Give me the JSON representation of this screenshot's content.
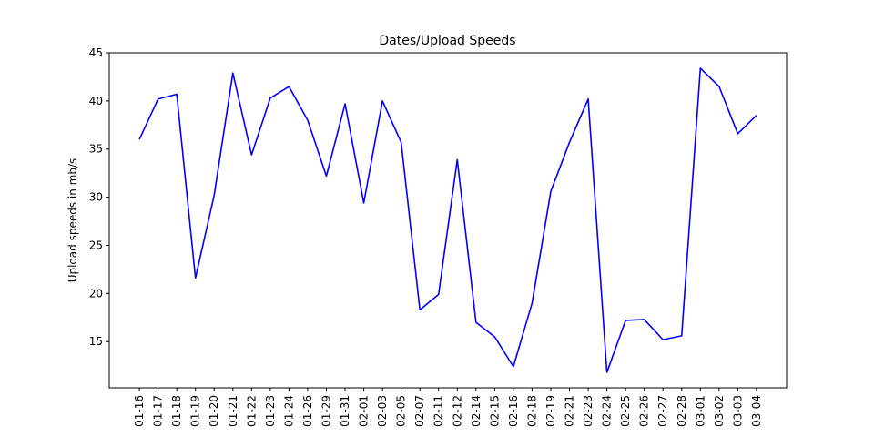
{
  "chart_data": {
    "type": "line",
    "title": "Dates/Upload Speeds",
    "xlabel": "",
    "ylabel": "Upload speeds in mb/s",
    "ylim": [
      10.2,
      45
    ],
    "yticks": [
      15,
      20,
      25,
      30,
      35,
      40,
      45
    ],
    "grid": false,
    "line_color": "#0000ff",
    "categories": [
      "01-16",
      "01-17",
      "01-18",
      "01-19",
      "01-20",
      "01-21",
      "01-22",
      "01-23",
      "01-24",
      "01-26",
      "01-29",
      "01-31",
      "02-01",
      "02-03",
      "02-05",
      "02-07",
      "02-11",
      "02-12",
      "02-14",
      "02-15",
      "02-16",
      "02-18",
      "02-19",
      "02-21",
      "02-23",
      "02-24",
      "02-25",
      "02-26",
      "02-27",
      "02-28",
      "03-01",
      "03-02",
      "03-03",
      "03-04"
    ],
    "series": [
      {
        "name": "Upload speed",
        "values": [
          36.0,
          40.2,
          40.7,
          21.6,
          30.2,
          42.9,
          34.4,
          40.3,
          41.5,
          38.0,
          32.2,
          39.7,
          29.4,
          40.0,
          35.7,
          18.3,
          19.9,
          33.9,
          17.0,
          15.5,
          12.4,
          19.0,
          30.6,
          35.7,
          40.2,
          11.8,
          17.2,
          17.3,
          15.2,
          15.6,
          43.4,
          41.5,
          36.6,
          38.5
        ]
      }
    ]
  }
}
